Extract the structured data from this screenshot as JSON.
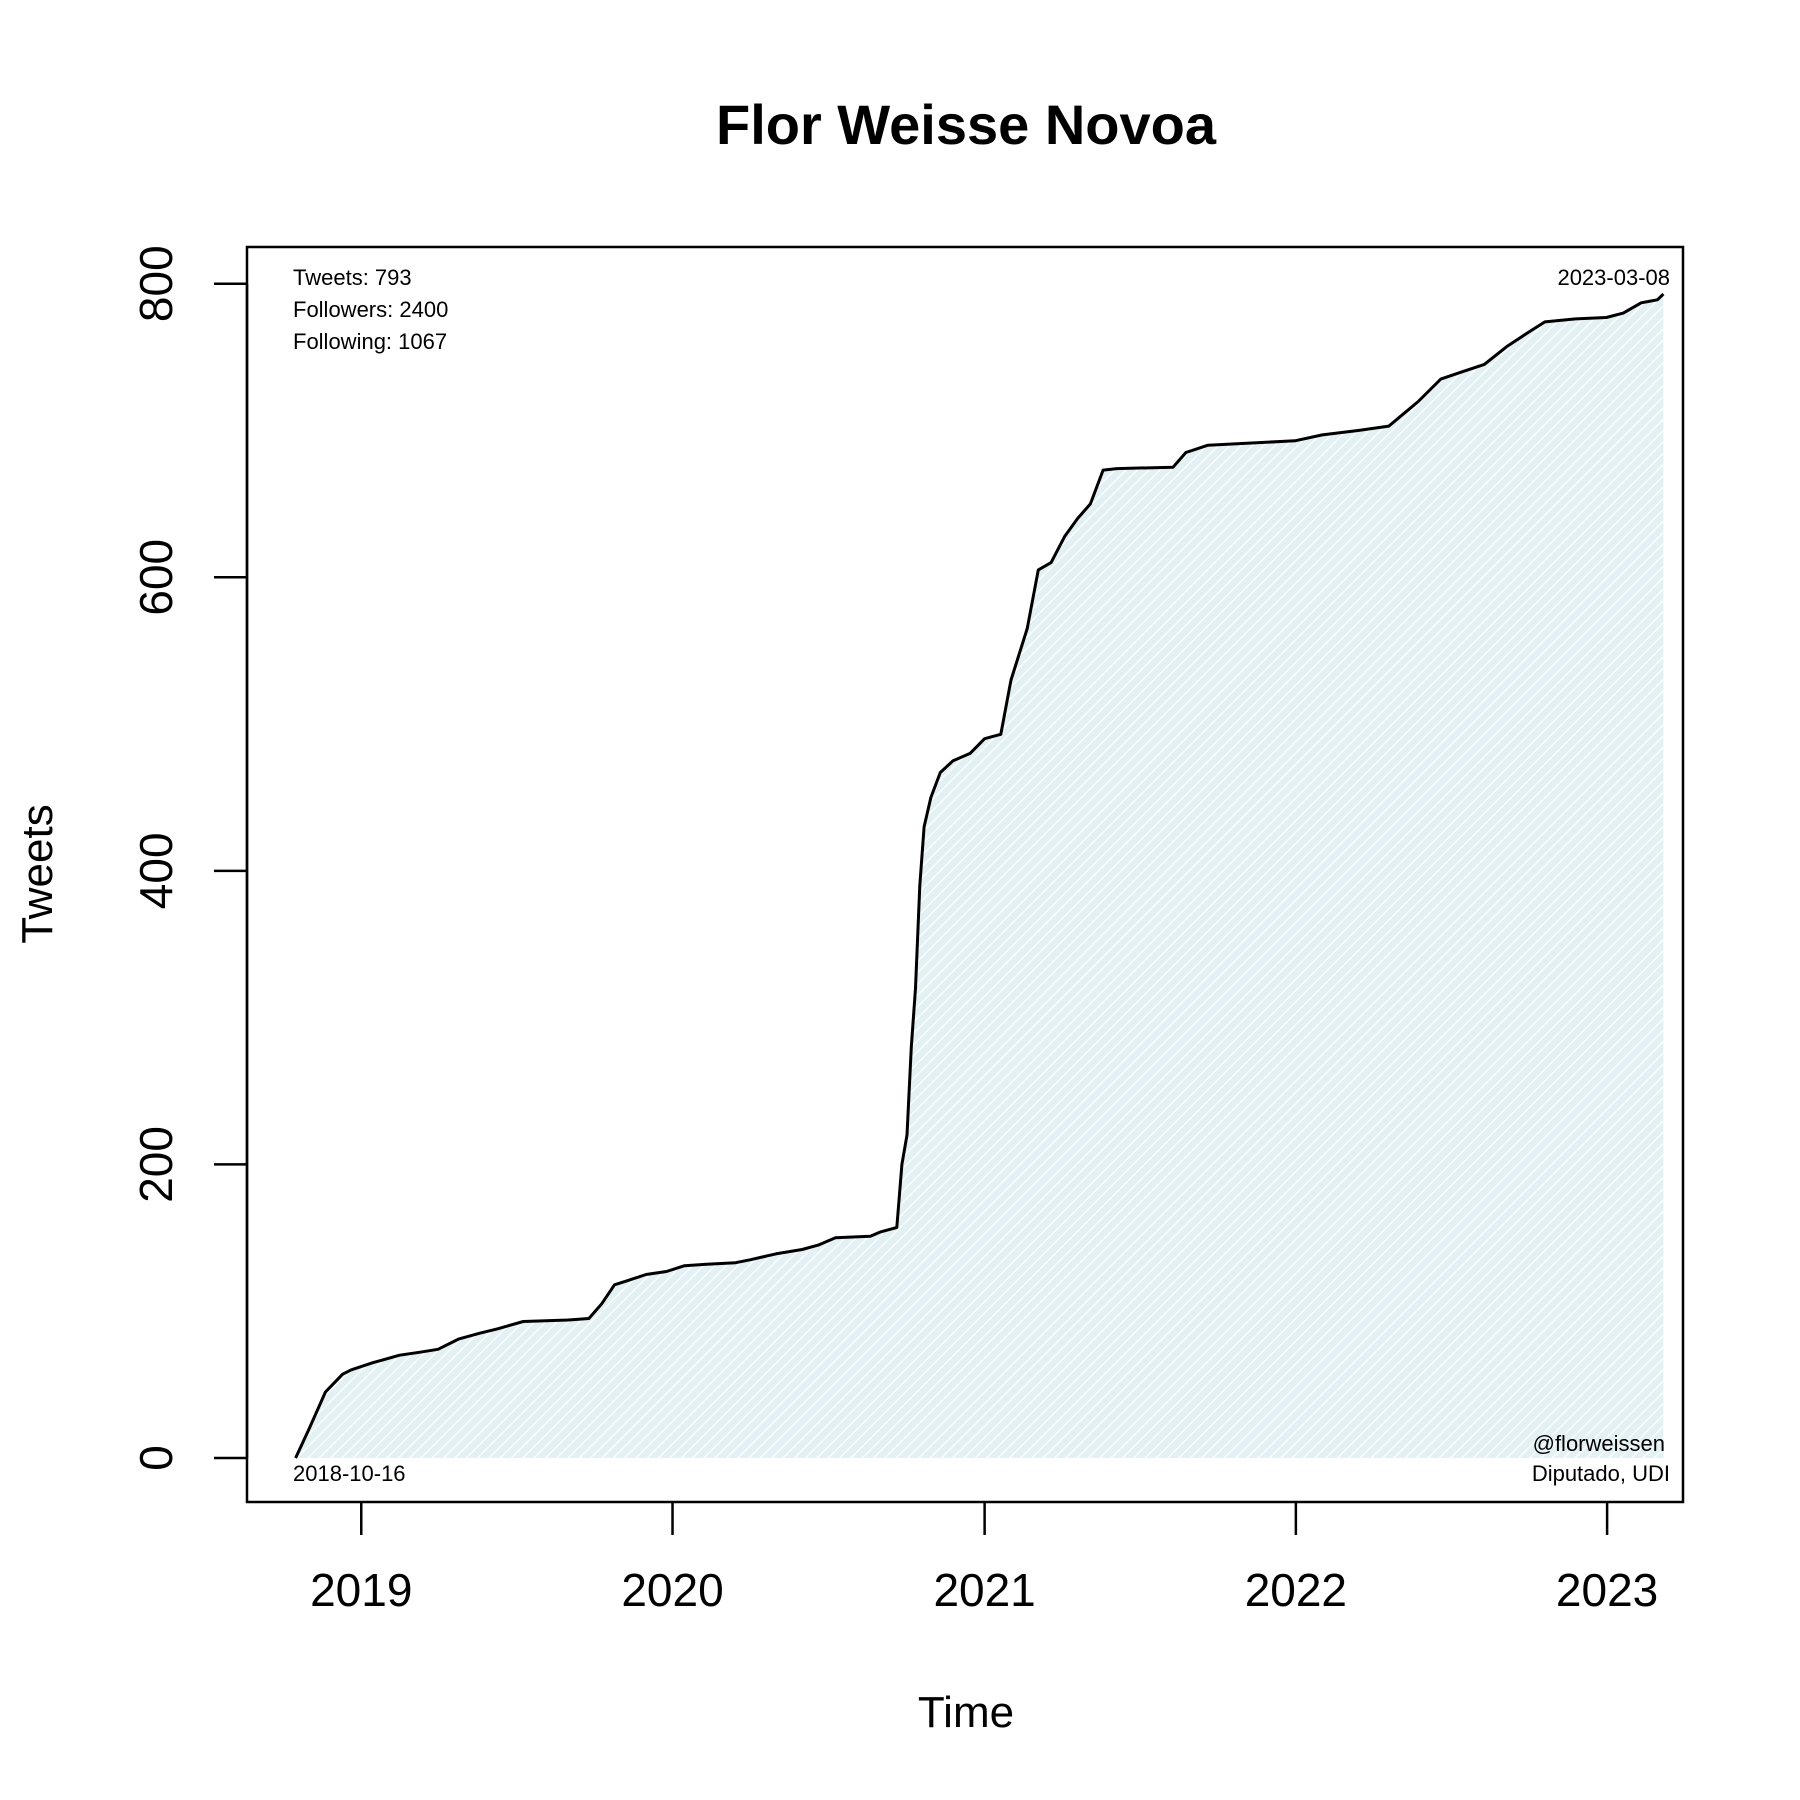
{
  "chart_data": {
    "type": "line",
    "title": "Flor Weisse Novoa",
    "xlabel": "Time",
    "ylabel": "Tweets",
    "xlim": [
      "2018-08-20",
      "2023-03-31"
    ],
    "ylim": [
      -30,
      825
    ],
    "x_ticks": [
      {
        "date": "2019-01-01",
        "label": "2019"
      },
      {
        "date": "2020-01-01",
        "label": "2020"
      },
      {
        "date": "2021-01-01",
        "label": "2021"
      },
      {
        "date": "2022-01-01",
        "label": "2022"
      },
      {
        "date": "2023-01-01",
        "label": "2023"
      }
    ],
    "y_ticks": [
      0,
      200,
      400,
      600,
      800
    ],
    "grid": false,
    "fill": "#e3f1f4",
    "stats": {
      "tweets": "Tweets: 793",
      "followers": "Followers: 2400",
      "following": "Following: 1067"
    },
    "start_label": "2018-10-16",
    "end_label": "2023-03-08",
    "handle": "@florweissen",
    "role": "Diputado, UDI",
    "series": [
      {
        "name": "",
        "color": "#000000",
        "points": [
          [
            "2018-10-16",
            0
          ],
          [
            "2018-11-01",
            20
          ],
          [
            "2018-11-20",
            45
          ],
          [
            "2018-12-10",
            57
          ],
          [
            "2018-12-20",
            60
          ],
          [
            "2019-01-15",
            65
          ],
          [
            "2019-02-15",
            70
          ],
          [
            "2019-03-10",
            72
          ],
          [
            "2019-04-01",
            74
          ],
          [
            "2019-04-25",
            81
          ],
          [
            "2019-05-20",
            85
          ],
          [
            "2019-06-10",
            88
          ],
          [
            "2019-07-10",
            93
          ],
          [
            "2019-09-01",
            94
          ],
          [
            "2019-09-25",
            95
          ],
          [
            "2019-10-10",
            105
          ],
          [
            "2019-10-25",
            118
          ],
          [
            "2019-11-10",
            121
          ],
          [
            "2019-12-01",
            125
          ],
          [
            "2019-12-25",
            127
          ],
          [
            "2020-01-15",
            131
          ],
          [
            "2020-02-10",
            132
          ],
          [
            "2020-03-15",
            133
          ],
          [
            "2020-04-01",
            135
          ],
          [
            "2020-05-01",
            139
          ],
          [
            "2020-06-01",
            142
          ],
          [
            "2020-06-20",
            145
          ],
          [
            "2020-07-10",
            150
          ],
          [
            "2020-08-20",
            151
          ],
          [
            "2020-09-01",
            154
          ],
          [
            "2020-09-20",
            157
          ],
          [
            "2020-09-26",
            200
          ],
          [
            "2020-10-02",
            220
          ],
          [
            "2020-10-07",
            280
          ],
          [
            "2020-10-12",
            320
          ],
          [
            "2020-10-17",
            390
          ],
          [
            "2020-10-22",
            430
          ],
          [
            "2020-10-30",
            450
          ],
          [
            "2020-11-10",
            467
          ],
          [
            "2020-11-25",
            475
          ],
          [
            "2020-12-15",
            480
          ],
          [
            "2021-01-01",
            490
          ],
          [
            "2021-01-20",
            493
          ],
          [
            "2021-02-01",
            530
          ],
          [
            "2021-02-20",
            565
          ],
          [
            "2021-03-05",
            605
          ],
          [
            "2021-03-20",
            610
          ],
          [
            "2021-04-05",
            628
          ],
          [
            "2021-04-20",
            640
          ],
          [
            "2021-05-05",
            650
          ],
          [
            "2021-05-20",
            673
          ],
          [
            "2021-06-05",
            674
          ],
          [
            "2021-08-10",
            675
          ],
          [
            "2021-08-25",
            685
          ],
          [
            "2021-09-20",
            690
          ],
          [
            "2021-12-31",
            693
          ],
          [
            "2022-02-01",
            697
          ],
          [
            "2022-03-15",
            700
          ],
          [
            "2022-04-20",
            703
          ],
          [
            "2022-05-25",
            720
          ],
          [
            "2022-06-20",
            735
          ],
          [
            "2022-07-15",
            740
          ],
          [
            "2022-08-10",
            745
          ],
          [
            "2022-09-05",
            757
          ],
          [
            "2022-10-01",
            767
          ],
          [
            "2022-10-20",
            774
          ],
          [
            "2022-11-25",
            776
          ],
          [
            "2022-12-31",
            777
          ],
          [
            "2023-01-20",
            780
          ],
          [
            "2023-02-10",
            787
          ],
          [
            "2023-03-01",
            789
          ],
          [
            "2023-03-08",
            793
          ]
        ]
      }
    ]
  }
}
